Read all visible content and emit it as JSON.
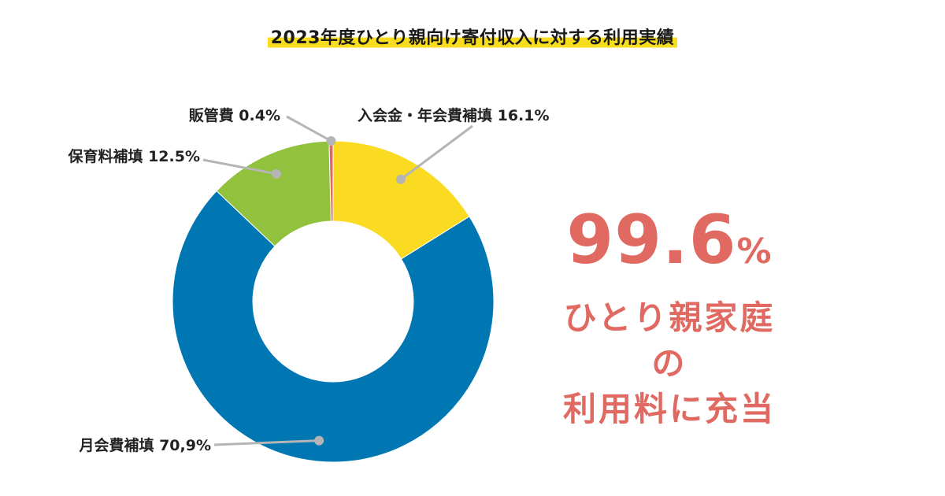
{
  "title": "2023年度ひとり親向け寄付収入に対する利用実績",
  "chart_data": {
    "type": "pie",
    "style": "donut",
    "title": "2023年度ひとり親向け寄付収入に対する利用実績",
    "slices": [
      {
        "label": "入会金・年会費補填",
        "value": 16.1,
        "label_text": "入会金・年会費補填 16.1%",
        "color": "#fadb22"
      },
      {
        "label": "月会費補填",
        "value": 70.9,
        "label_text": "月会費補填 70,9%",
        "color": "#0077b3"
      },
      {
        "label": "保育料補填",
        "value": 12.5,
        "label_text": "保育料補填 12.5%",
        "color": "#92c13e"
      },
      {
        "label": "販管費",
        "value": 0.4,
        "label_text": "販管費 0.4%",
        "color": "#e06a62"
      }
    ]
  },
  "callout": {
    "value": "99.6",
    "unit": "%",
    "line1": "ひとり親家庭の",
    "line2": "利用料に充当",
    "color": "#e06a62"
  },
  "leader_color": "#b5b5b5"
}
